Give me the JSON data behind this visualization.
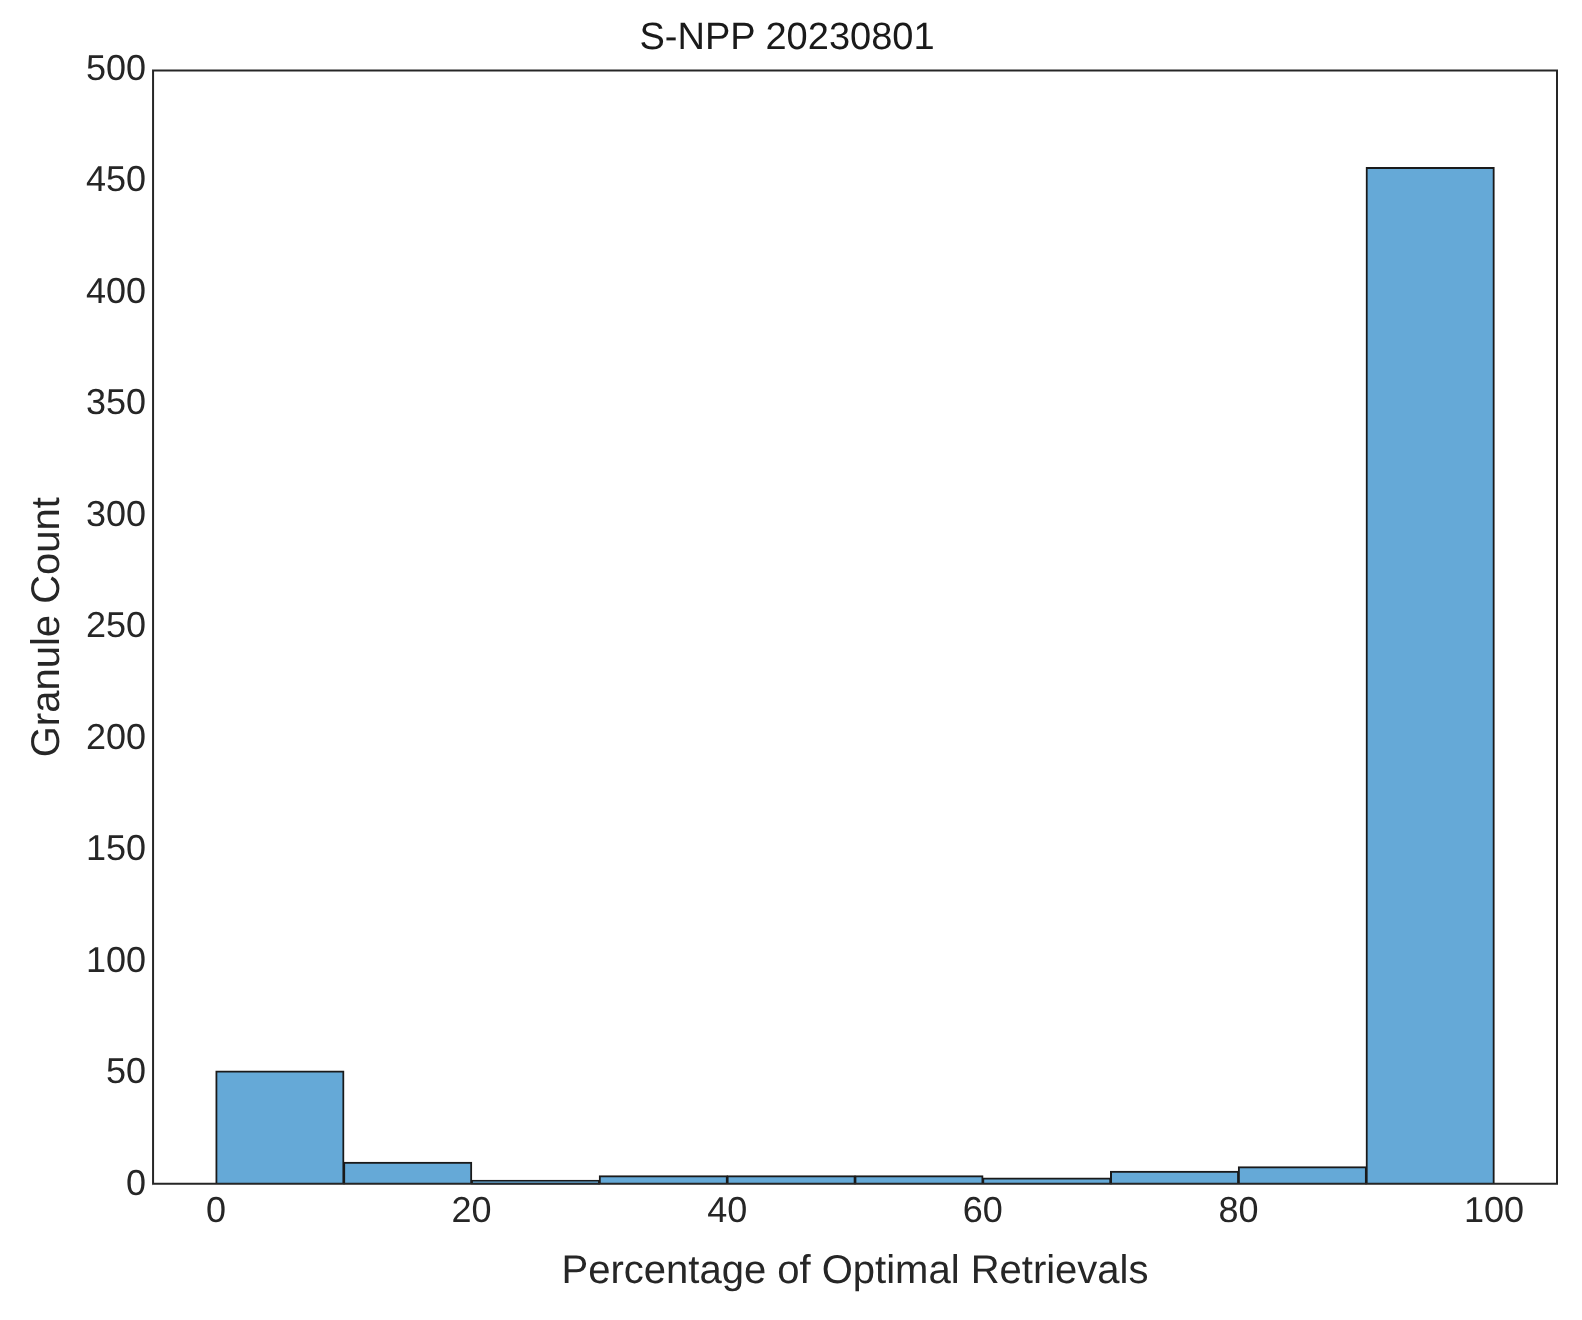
{
  "chart_data": {
    "type": "histogram",
    "title": "S-NPP 20230801",
    "xlabel": "Percentage of Optimal Retrievals",
    "ylabel": "Granule Count",
    "bins": [
      0,
      10,
      20,
      30,
      40,
      50,
      60,
      70,
      80,
      90,
      100
    ],
    "values": [
      51,
      10,
      2,
      4,
      4,
      4,
      3,
      6,
      8,
      456
    ],
    "color": "#65a9d7",
    "xlim": [
      -5,
      105
    ],
    "xticks": [
      0,
      20,
      40,
      60,
      80,
      100
    ],
    "ylim": [
      0,
      500
    ],
    "yticks": [
      0,
      50,
      100,
      150,
      200,
      250,
      300,
      350,
      400,
      450,
      500
    ],
    "grid": false,
    "legend": false
  }
}
